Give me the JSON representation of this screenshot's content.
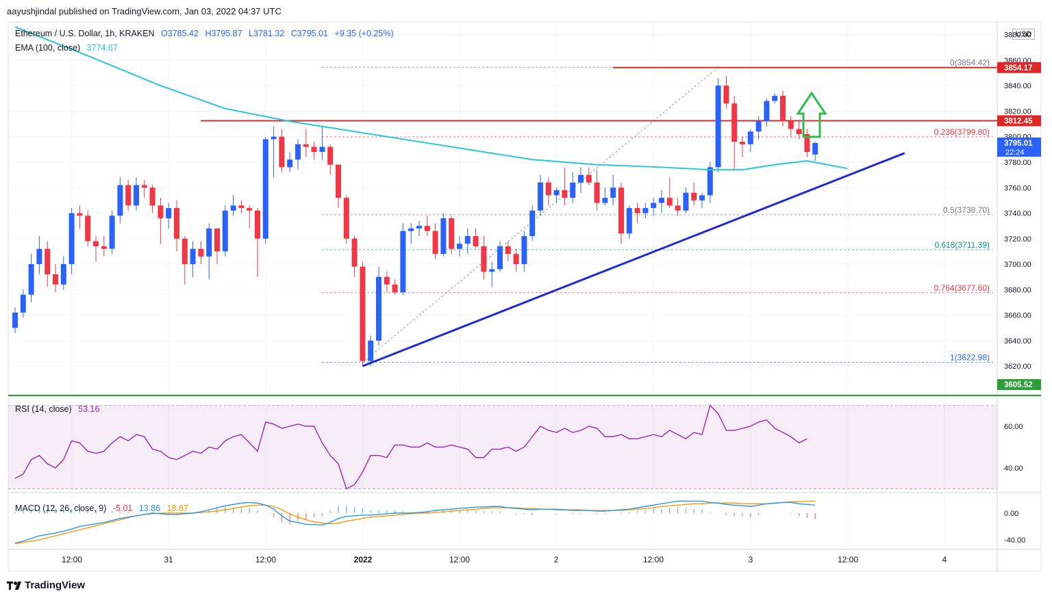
{
  "header": {
    "publisher_line": "aayushjindal published on TradingView.com, Jan 03, 2022 04:37 UTC"
  },
  "symbol_legend": {
    "symbol": "Ethereum / U.S. Dollar, 1h, KRAKEN",
    "open": "O3785.42",
    "high": "H3795.87",
    "low": "L3781.32",
    "close": "C3795.01",
    "change": "+9.35 (+0.25%)"
  },
  "ema_legend": {
    "label": "EMA (100, close)",
    "value": "3774.67"
  },
  "rsi_legend": {
    "label": "RSI (14, close)",
    "value": "53.16"
  },
  "macd_legend": {
    "label": "MACD (12, 26, close, 9)",
    "hist": "-5.01",
    "macd": "13.86",
    "signal": "18.87"
  },
  "currency": "USD",
  "footer": {
    "brand": "TradingView"
  },
  "colors": {
    "up": "#2962ff",
    "down": "#f23645",
    "ema": "#26c6da",
    "trend": "#1e2ad6",
    "resistance": "#e02626",
    "support_green": "#2e9e3a",
    "arrow": "#2ebd4a",
    "rsi": "#9c27b0",
    "macd": "#2196f3",
    "signal": "#ff9800"
  },
  "chart_data": [
    {
      "type": "candlestick",
      "title": "Ethereum / U.S. Dollar, 1h, KRAKEN",
      "ylim": [
        3600,
        3890
      ],
      "y_ticks": [
        "3880.00",
        "3860.00",
        "3840.00",
        "3820.00",
        "3800.00",
        "3780.00",
        "3760.00",
        "3740.00",
        "3720.00",
        "3700.00",
        "3680.00",
        "3660.00",
        "3640.00",
        "3620.00"
      ],
      "x_ticks": [
        "12:00",
        "31",
        "12:00",
        "2022",
        "12:00",
        "2",
        "12:00",
        "3",
        "12:00",
        "4"
      ],
      "candles": [
        [
          3650,
          3666,
          3646,
          3662
        ],
        [
          3662,
          3680,
          3658,
          3676
        ],
        [
          3676,
          3708,
          3670,
          3700
        ],
        [
          3700,
          3722,
          3692,
          3712
        ],
        [
          3712,
          3718,
          3682,
          3692
        ],
        [
          3692,
          3700,
          3678,
          3684
        ],
        [
          3684,
          3706,
          3680,
          3700
        ],
        [
          3700,
          3744,
          3692,
          3740
        ],
        [
          3740,
          3746,
          3728,
          3738
        ],
        [
          3738,
          3742,
          3714,
          3718
        ],
        [
          3718,
          3722,
          3702,
          3714
        ],
        [
          3714,
          3722,
          3706,
          3712
        ],
        [
          3712,
          3742,
          3708,
          3738
        ],
        [
          3738,
          3768,
          3732,
          3762
        ],
        [
          3762,
          3766,
          3742,
          3746
        ],
        [
          3746,
          3768,
          3742,
          3762
        ],
        [
          3762,
          3766,
          3752,
          3760
        ],
        [
          3760,
          3762,
          3740,
          3746
        ],
        [
          3746,
          3752,
          3716,
          3736
        ],
        [
          3736,
          3748,
          3728,
          3744
        ],
        [
          3744,
          3750,
          3710,
          3720
        ],
        [
          3720,
          3722,
          3684,
          3700
        ],
        [
          3700,
          3718,
          3690,
          3712
        ],
        [
          3712,
          3718,
          3700,
          3706
        ],
        [
          3706,
          3732,
          3688,
          3728
        ],
        [
          3728,
          3728,
          3700,
          3710
        ],
        [
          3710,
          3746,
          3706,
          3742
        ],
        [
          3742,
          3754,
          3738,
          3746
        ],
        [
          3746,
          3750,
          3740,
          3744
        ],
        [
          3744,
          3746,
          3728,
          3742
        ],
        [
          3742,
          3744,
          3690,
          3720
        ],
        [
          3720,
          3800,
          3716,
          3798
        ],
        [
          3798,
          3808,
          3768,
          3800
        ],
        [
          3800,
          3806,
          3772,
          3776
        ],
        [
          3776,
          3788,
          3772,
          3782
        ],
        [
          3782,
          3798,
          3774,
          3794
        ],
        [
          3794,
          3806,
          3784,
          3792
        ],
        [
          3792,
          3796,
          3782,
          3788
        ],
        [
          3788,
          3808,
          3782,
          3792
        ],
        [
          3792,
          3794,
          3770,
          3778
        ],
        [
          3778,
          3778,
          3744,
          3752
        ],
        [
          3752,
          3754,
          3716,
          3720
        ],
        [
          3720,
          3722,
          3690,
          3698
        ],
        [
          3698,
          3702,
          3620,
          3624
        ],
        [
          3624,
          3644,
          3620,
          3640
        ],
        [
          3640,
          3698,
          3636,
          3690
        ],
        [
          3690,
          3694,
          3678,
          3684
        ],
        [
          3684,
          3688,
          3676,
          3678
        ],
        [
          3678,
          3732,
          3676,
          3726
        ],
        [
          3726,
          3732,
          3716,
          3728
        ],
        [
          3728,
          3734,
          3722,
          3730
        ],
        [
          3730,
          3738,
          3722,
          3726
        ],
        [
          3726,
          3732,
          3704,
          3708
        ],
        [
          3708,
          3740,
          3706,
          3736
        ],
        [
          3736,
          3738,
          3708,
          3712
        ],
        [
          3712,
          3722,
          3706,
          3716
        ],
        [
          3716,
          3728,
          3708,
          3722
        ],
        [
          3722,
          3728,
          3712,
          3714
        ],
        [
          3714,
          3722,
          3688,
          3694
        ],
        [
          3694,
          3702,
          3682,
          3696
        ],
        [
          3696,
          3718,
          3694,
          3714
        ],
        [
          3714,
          3718,
          3702,
          3708
        ],
        [
          3708,
          3712,
          3694,
          3700
        ],
        [
          3700,
          3726,
          3694,
          3722
        ],
        [
          3722,
          3746,
          3718,
          3742
        ],
        [
          3742,
          3770,
          3738,
          3764
        ],
        [
          3764,
          3768,
          3746,
          3754
        ],
        [
          3754,
          3760,
          3748,
          3758
        ],
        [
          3758,
          3776,
          3746,
          3752
        ],
        [
          3752,
          3772,
          3748,
          3764
        ],
        [
          3764,
          3776,
          3756,
          3770
        ],
        [
          3770,
          3776,
          3762,
          3764
        ],
        [
          3764,
          3774,
          3742,
          3748
        ],
        [
          3748,
          3760,
          3746,
          3752
        ],
        [
          3752,
          3770,
          3746,
          3760
        ],
        [
          3760,
          3764,
          3716,
          3724
        ],
        [
          3724,
          3746,
          3720,
          3744
        ],
        [
          3744,
          3748,
          3732,
          3740
        ],
        [
          3740,
          3748,
          3736,
          3744
        ],
        [
          3744,
          3752,
          3738,
          3748
        ],
        [
          3748,
          3758,
          3740,
          3752
        ],
        [
          3752,
          3768,
          3744,
          3746
        ],
        [
          3746,
          3752,
          3738,
          3742
        ],
        [
          3742,
          3760,
          3740,
          3756
        ],
        [
          3756,
          3764,
          3746,
          3750
        ],
        [
          3750,
          3756,
          3744,
          3754
        ],
        [
          3754,
          3780,
          3748,
          3776
        ],
        [
          3776,
          3846,
          3772,
          3840
        ],
        [
          3840,
          3848,
          3822,
          3826
        ],
        [
          3826,
          3832,
          3774,
          3796
        ],
        [
          3796,
          3800,
          3784,
          3794
        ],
        [
          3794,
          3806,
          3788,
          3804
        ],
        [
          3804,
          3816,
          3798,
          3812
        ],
        [
          3812,
          3830,
          3808,
          3828
        ],
        [
          3828,
          3834,
          3826,
          3832
        ],
        [
          3832,
          3836,
          3808,
          3812
        ],
        [
          3812,
          3816,
          3800,
          3806
        ],
        [
          3806,
          3812,
          3798,
          3802
        ],
        [
          3802,
          3806,
          3784,
          3788
        ],
        [
          3786,
          3796,
          3781,
          3795
        ]
      ],
      "ema": {
        "name": "EMA (100, close)",
        "values": [
          [
            0,
            3886
          ],
          [
            8,
            3866
          ],
          [
            18,
            3840
          ],
          [
            26,
            3822
          ],
          [
            34,
            3812
          ],
          [
            40,
            3806
          ],
          [
            48,
            3798
          ],
          [
            56,
            3790
          ],
          [
            64,
            3782
          ],
          [
            72,
            3778
          ],
          [
            80,
            3776
          ],
          [
            86,
            3774
          ],
          [
            90,
            3774
          ],
          [
            94,
            3778
          ],
          [
            98,
            3781
          ],
          [
            103,
            3775
          ]
        ]
      },
      "fibonacci": [
        {
          "label": "0(3854.42)",
          "value": 3854.42,
          "color": "#787b86"
        },
        {
          "label": "0.236(3799.80)",
          "value": 3799.8,
          "color": "#f23645"
        },
        {
          "label": "0.5(3738.70)",
          "value": 3738.7,
          "color": "#787b86"
        },
        {
          "label": "0.618(3711.39)",
          "value": 3711.39,
          "color": "#089981"
        },
        {
          "label": "0.764(3677.60)",
          "value": 3677.6,
          "color": "#f23645"
        },
        {
          "label": "1(3622.98)",
          "value": 3622.98,
          "color": "#2962ff"
        }
      ],
      "price_tags": [
        {
          "label": "3854.17",
          "value": 3854.17,
          "color": "#e02626"
        },
        {
          "label": "3812.45",
          "value": 3812.45,
          "color": "#e02626"
        },
        {
          "label": "3795.01",
          "sub": "22:24",
          "value": 3795.01,
          "color": "#2962ff"
        },
        {
          "label": "3605.52",
          "value": 3605.52,
          "color": "#2e9e3a"
        }
      ],
      "resistance_lines": [
        3854.17,
        3812.45
      ],
      "support_line": 3605.52,
      "trendline": [
        [
          43,
          3620
        ],
        [
          106,
          3786
        ]
      ]
    },
    {
      "type": "line",
      "title": "RSI (14, close)",
      "ylim": [
        25,
        70
      ],
      "y_ticks": [
        "60.00",
        "40.00"
      ],
      "band": [
        30,
        70
      ],
      "values": [
        35,
        37,
        44,
        46,
        42,
        40,
        44,
        53,
        52,
        48,
        47,
        48,
        52,
        55,
        53,
        56,
        55,
        49,
        48,
        45,
        44,
        46,
        48,
        47,
        50,
        49,
        53,
        55,
        56,
        52,
        48,
        62,
        61,
        59,
        60,
        61,
        60,
        60,
        52,
        46,
        42,
        30,
        32,
        38,
        46,
        46,
        45,
        51,
        51,
        50,
        50,
        52,
        50,
        50,
        51,
        50,
        49,
        45,
        45,
        49,
        49,
        50,
        48,
        50,
        55,
        60,
        58,
        57,
        59,
        57,
        58,
        60,
        59,
        55,
        55,
        56,
        54,
        54,
        55,
        56,
        55,
        58,
        56,
        54,
        57,
        56,
        70,
        66,
        58,
        58,
        59,
        60,
        62,
        63,
        59,
        57,
        55,
        52,
        54
      ]
    },
    {
      "type": "macd",
      "title": "MACD (12, 26, close, 9)",
      "ylim": [
        -48,
        25
      ],
      "y_ticks": [
        "0.00",
        "-40.00"
      ],
      "macd": [
        -45,
        -42,
        -38,
        -34,
        -32,
        -30,
        -27,
        -24,
        -20,
        -18,
        -16,
        -14,
        -11,
        -8,
        -6,
        -4,
        -2,
        0,
        -1,
        -2,
        -2,
        -1,
        0,
        2,
        5,
        8,
        11,
        13,
        15,
        16,
        15,
        12,
        6,
        -4,
        -12,
        -14,
        -17,
        -17,
        -18,
        -14,
        -8,
        -5,
        -4,
        -3,
        -3,
        -2,
        -1,
        0,
        0,
        0,
        1,
        2,
        4,
        5,
        6,
        7,
        8,
        9,
        9,
        10,
        10,
        8,
        7,
        6,
        5,
        6,
        6,
        5,
        5,
        4,
        4,
        4,
        3,
        3,
        4,
        5,
        6,
        8,
        10,
        12,
        14,
        16,
        18,
        18,
        18,
        18,
        16,
        15,
        13,
        12,
        11,
        10,
        12,
        14,
        15,
        16,
        16,
        14,
        13,
        12
      ]
    },
    {
      "type": "line",
      "series_name": "signal",
      "values": [
        -46,
        -44,
        -42,
        -40,
        -37,
        -34,
        -31,
        -28,
        -25,
        -22,
        -19,
        -16,
        -13,
        -10,
        -7,
        -4,
        -2,
        -1,
        0,
        0,
        0,
        0,
        0,
        1,
        2,
        3,
        5,
        7,
        9,
        11,
        12,
        12,
        10,
        5,
        -1,
        -6,
        -10,
        -13,
        -15,
        -16,
        -15,
        -12,
        -10,
        -8,
        -6,
        -5,
        -4,
        -3,
        -2,
        -1,
        0,
        0,
        1,
        2,
        3,
        4,
        5,
        6,
        7,
        8,
        8,
        8,
        8,
        7,
        7,
        6,
        6,
        6,
        5,
        5,
        5,
        4,
        4,
        4,
        4,
        4,
        5,
        6,
        7,
        8,
        10,
        11,
        12,
        13,
        14,
        14,
        15,
        15,
        15,
        15,
        14,
        14,
        14,
        14,
        15,
        16,
        17,
        17,
        18,
        18
      ]
    }
  ]
}
